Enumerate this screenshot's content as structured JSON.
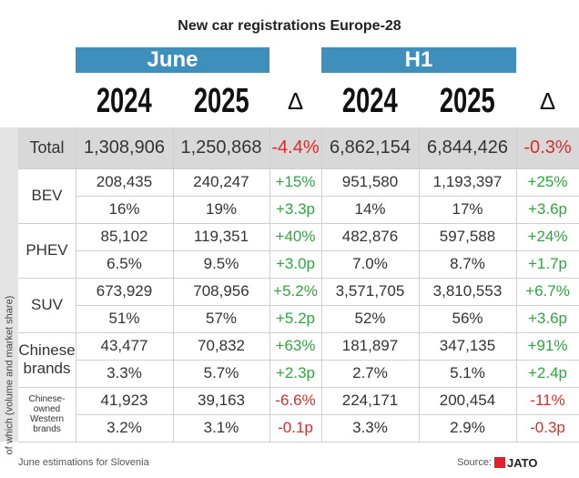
{
  "header": {
    "title": "New car registrations Europe-28"
  },
  "groups": [
    "June",
    "H1"
  ],
  "columns": [
    "2024",
    "2025",
    "Δ",
    "2024",
    "2025",
    "Δ"
  ],
  "side_label": "of which (volume and market share)",
  "total": {
    "label": "Total",
    "cells": [
      "1,308,906",
      "1,250,868",
      "-4.4%",
      "6,862,154",
      "6,844,426",
      "-0.3%"
    ]
  },
  "sections": [
    {
      "label": "BEV",
      "rows": [
        [
          "208,435",
          "240,247",
          "+15%",
          "951,580",
          "1,193,397",
          "+25%"
        ],
        [
          "16%",
          "19%",
          "+3.3p",
          "14%",
          "17%",
          "+3.6p"
        ]
      ]
    },
    {
      "label": "PHEV",
      "rows": [
        [
          "85,102",
          "119,351",
          "+40%",
          "482,876",
          "597,588",
          "+24%"
        ],
        [
          "6.5%",
          "9.5%",
          "+3.0p",
          "7.0%",
          "8.7%",
          "+1.7p"
        ]
      ]
    },
    {
      "label": "SUV",
      "rows": [
        [
          "673,929",
          "708,956",
          "+5.2%",
          "3,571,705",
          "3,810,553",
          "+6.7%"
        ],
        [
          "51%",
          "57%",
          "+5.2p",
          "52%",
          "56%",
          "+3.6p"
        ]
      ]
    },
    {
      "label": "Chinese brands",
      "rows": [
        [
          "43,477",
          "70,832",
          "+63%",
          "181,897",
          "347,135",
          "+91%"
        ],
        [
          "3.3%",
          "5.7%",
          "+2.3p",
          "2.7%",
          "5.1%",
          "+2.4p"
        ]
      ]
    },
    {
      "label": "Chinese-owned Western brands",
      "rows": [
        [
          "41,923",
          "39,163",
          "-6.6%",
          "224,171",
          "200,454",
          "-11%"
        ],
        [
          "3.2%",
          "3.1%",
          "-0.1p",
          "3.3%",
          "2.9%",
          "-0.3p"
        ]
      ]
    }
  ],
  "footer": {
    "note": "June estimations for Slovenia",
    "source": "Source:",
    "logo": "JATO"
  }
}
